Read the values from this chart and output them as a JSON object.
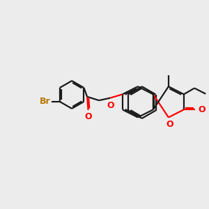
{
  "bg_color": "#ececec",
  "bond_color": "#1a1a1a",
  "oxygen_color": "#ff0000",
  "bromine_color": "#b87800",
  "line_width": 1.6,
  "fig_size": [
    3.0,
    3.0
  ],
  "dpi": 100,
  "xlim": [
    0,
    10
  ],
  "ylim": [
    1,
    9
  ]
}
